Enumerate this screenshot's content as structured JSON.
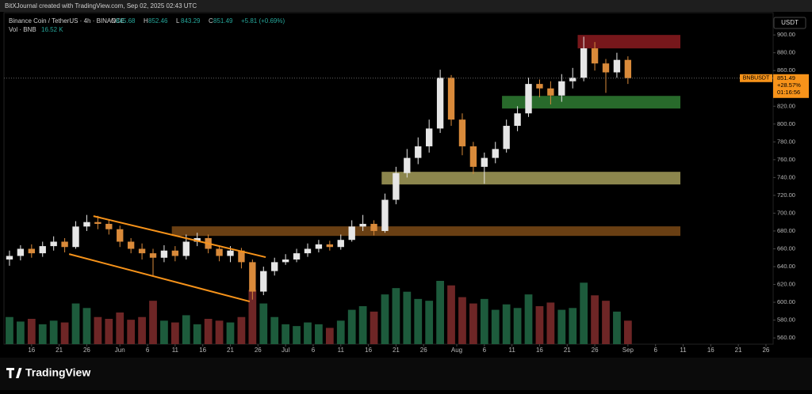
{
  "header": {
    "credit": "BitXJournal created with TradingView.com, Sep 02, 2025 02:43 UTC",
    "symbol": "Binance Coin / TetherUS · 4h · BINANCE",
    "ohlc": [
      {
        "label": "O",
        "value": 845.68
      },
      {
        "label": "H",
        "value": 852.46
      },
      {
        "label": "L",
        "value": 843.29
      },
      {
        "label": "C",
        "value": 851.49
      }
    ],
    "change": "+5.81 (+0.69%)",
    "volume_label": "Vol · BNB",
    "volume_value": "16.52 K"
  },
  "footer": {
    "brand": "TradingView"
  },
  "chart_data": {
    "type": "candlestick",
    "currency": "USDT",
    "symbol_tag": "BNBUSDT",
    "last_price": 851.49,
    "change_pct": "+28.57%",
    "countdown": "01:16:56",
    "up_color": "#e6e6e6",
    "down_color": "#d98a3a",
    "volume_up_color": "#1d5b3c",
    "volume_down_color": "#6e2626",
    "grid": false,
    "xlim": [
      -5,
      134.3
    ],
    "ylim": [
      553,
      925
    ],
    "xticks": [
      {
        "value": 0,
        "label": "16"
      },
      {
        "value": 5,
        "label": "21"
      },
      {
        "value": 10,
        "label": "26"
      },
      {
        "value": 16,
        "label": "Jun"
      },
      {
        "value": 21,
        "label": "6"
      },
      {
        "value": 26,
        "label": "11"
      },
      {
        "value": 31,
        "label": "16"
      },
      {
        "value": 36,
        "label": "21"
      },
      {
        "value": 41,
        "label": "26"
      },
      {
        "value": 46,
        "label": "Jul"
      },
      {
        "value": 51,
        "label": "6"
      },
      {
        "value": 56,
        "label": "11"
      },
      {
        "value": 61,
        "label": "16"
      },
      {
        "value": 66,
        "label": "21"
      },
      {
        "value": 71,
        "label": "26"
      },
      {
        "value": 77,
        "label": "Aug"
      },
      {
        "value": 82,
        "label": "6"
      },
      {
        "value": 87,
        "label": "11"
      },
      {
        "value": 92,
        "label": "16"
      },
      {
        "value": 97,
        "label": "21"
      },
      {
        "value": 102,
        "label": "26"
      },
      {
        "value": 108,
        "label": "Sep"
      },
      {
        "value": 113,
        "label": "6"
      },
      {
        "value": 118,
        "label": "11"
      },
      {
        "value": 123,
        "label": "16"
      },
      {
        "value": 128,
        "label": "21"
      },
      {
        "value": 133,
        "label": "26"
      }
    ],
    "yticks": [
      {
        "value": 560,
        "label": "560.00"
      },
      {
        "value": 580,
        "label": "580.00"
      },
      {
        "value": 600,
        "label": "600.00"
      },
      {
        "value": 620,
        "label": "620.00"
      },
      {
        "value": 640,
        "label": "640.00"
      },
      {
        "value": 660,
        "label": "660.00"
      },
      {
        "value": 680,
        "label": "680.00"
      },
      {
        "value": 700,
        "label": "700.00"
      },
      {
        "value": 720,
        "label": "720.00"
      },
      {
        "value": 740,
        "label": "740.00"
      },
      {
        "value": 760,
        "label": "760.00"
      },
      {
        "value": 780,
        "label": "780.00"
      },
      {
        "value": 800,
        "label": "800.00"
      },
      {
        "value": 820,
        "label": "820.00"
      },
      {
        "value": 840,
        "label": "840.00"
      },
      {
        "value": 860,
        "label": "860.00"
      },
      {
        "value": 880,
        "label": "880.00"
      },
      {
        "value": 900,
        "label": "900.00"
      }
    ],
    "x": [
      -4,
      -2,
      0,
      2,
      4,
      6,
      8,
      10,
      12,
      14,
      16,
      18,
      20,
      22,
      24,
      26,
      28,
      30,
      32,
      34,
      36,
      38,
      40,
      42,
      44,
      46,
      48,
      50,
      52,
      54,
      56,
      58,
      60,
      62,
      64,
      66,
      68,
      70,
      72,
      74,
      76,
      78,
      80,
      82,
      84,
      86,
      88,
      90,
      92,
      94,
      96,
      98,
      100,
      102,
      104,
      106,
      108
    ],
    "open": [
      648,
      652,
      660,
      655,
      663,
      668,
      662,
      685,
      690,
      688,
      682,
      668,
      660,
      655,
      650,
      658,
      652,
      668,
      672,
      660,
      652,
      658,
      645,
      612,
      635,
      645,
      648,
      655,
      660,
      665,
      662,
      670,
      685,
      688,
      680,
      715,
      745,
      762,
      775,
      795,
      852,
      805,
      775,
      752,
      762,
      772,
      798,
      812,
      845,
      840,
      832,
      848,
      852,
      885,
      868,
      858,
      872
    ],
    "high": [
      658,
      664,
      665,
      668,
      674,
      672,
      691,
      698,
      697,
      693,
      686,
      672,
      666,
      660,
      664,
      663,
      676,
      678,
      676,
      664,
      663,
      661,
      648,
      640,
      650,
      654,
      660,
      666,
      670,
      669,
      676,
      692,
      698,
      692,
      722,
      752,
      772,
      785,
      805,
      861,
      855,
      812,
      780,
      768,
      780,
      805,
      820,
      852,
      850,
      848,
      856,
      863,
      898,
      892,
      873,
      880,
      876
    ],
    "low": [
      641,
      647,
      650,
      651,
      658,
      656,
      660,
      680,
      682,
      676,
      662,
      655,
      648,
      630,
      645,
      646,
      648,
      663,
      655,
      646,
      645,
      638,
      603,
      608,
      630,
      642,
      645,
      651,
      656,
      658,
      659,
      668,
      680,
      675,
      678,
      710,
      740,
      755,
      768,
      790,
      798,
      765,
      744,
      733,
      756,
      768,
      792,
      808,
      830,
      822,
      825,
      840,
      848,
      860,
      835,
      852,
      845
    ],
    "close": [
      652,
      660,
      655,
      663,
      668,
      662,
      685,
      690,
      688,
      682,
      668,
      660,
      655,
      650,
      658,
      652,
      668,
      672,
      660,
      652,
      658,
      645,
      612,
      635,
      645,
      648,
      655,
      660,
      665,
      662,
      670,
      685,
      688,
      680,
      715,
      745,
      762,
      775,
      795,
      852,
      805,
      775,
      752,
      762,
      772,
      798,
      812,
      845,
      840,
      832,
      848,
      852,
      885,
      868,
      858,
      872,
      851.49
    ],
    "volume": [
      30,
      25,
      28,
      22,
      26,
      24,
      45,
      40,
      30,
      28,
      35,
      27,
      30,
      48,
      26,
      24,
      32,
      22,
      28,
      26,
      24,
      30,
      60,
      45,
      30,
      22,
      20,
      24,
      22,
      18,
      26,
      38,
      42,
      36,
      55,
      62,
      58,
      50,
      48,
      70,
      65,
      52,
      45,
      50,
      38,
      44,
      40,
      55,
      42,
      46,
      38,
      40,
      68,
      54,
      48,
      36,
      26
    ],
    "zones": [
      {
        "x0": 98.9,
        "x1": 117.5,
        "y0": 884.9,
        "y1": 900,
        "color": "#8c1b20"
      },
      {
        "x0": 85.2,
        "x1": 117.5,
        "y0": 817.4,
        "y1": 831.6,
        "color": "#2f7d33"
      },
      {
        "x0": 63.4,
        "x1": 117.5,
        "y0": 732.2,
        "y1": 746.4,
        "color": "#a59d5b"
      },
      {
        "x0": 25.4,
        "x1": 117.5,
        "y0": 674.5,
        "y1": 685.2,
        "color": "#7b4a16"
      }
    ],
    "trendlines": [
      {
        "x0": 11.2,
        "x1": 42.4,
        "y0": 696.7,
        "y1": 650.6,
        "color": "#f7931a"
      },
      {
        "x0": 6.8,
        "x1": 39.5,
        "y0": 654.1,
        "y1": 600.9,
        "color": "#f7931a"
      }
    ]
  }
}
